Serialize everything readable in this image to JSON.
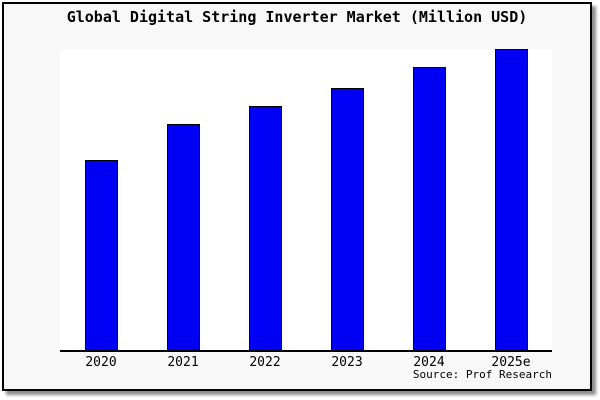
{
  "title": "Global Digital String Inverter Market (Million USD)",
  "source_note": "Source: Prof Research",
  "colors": {
    "bar_fill": "#0000f5",
    "bar_border": "#000000",
    "card_bg": "#f8f8f8",
    "plot_bg": "#ffffff",
    "axis": "#000000",
    "text": "#000000"
  },
  "chart_data": {
    "type": "bar",
    "title": "Global Digital String Inverter Market (Million USD)",
    "categories": [
      "2020",
      "2021",
      "2022",
      "2023",
      "2024",
      "2025e"
    ],
    "values": [
      63,
      75,
      81,
      87,
      94,
      100
    ],
    "values_note": "No y-axis or value labels shown; values are bar heights normalized to 2025e = 100",
    "xlabel": "",
    "ylabel": "",
    "ylim": [
      0,
      100
    ],
    "grid": false,
    "legend": false,
    "source": "Source: Prof Research"
  }
}
